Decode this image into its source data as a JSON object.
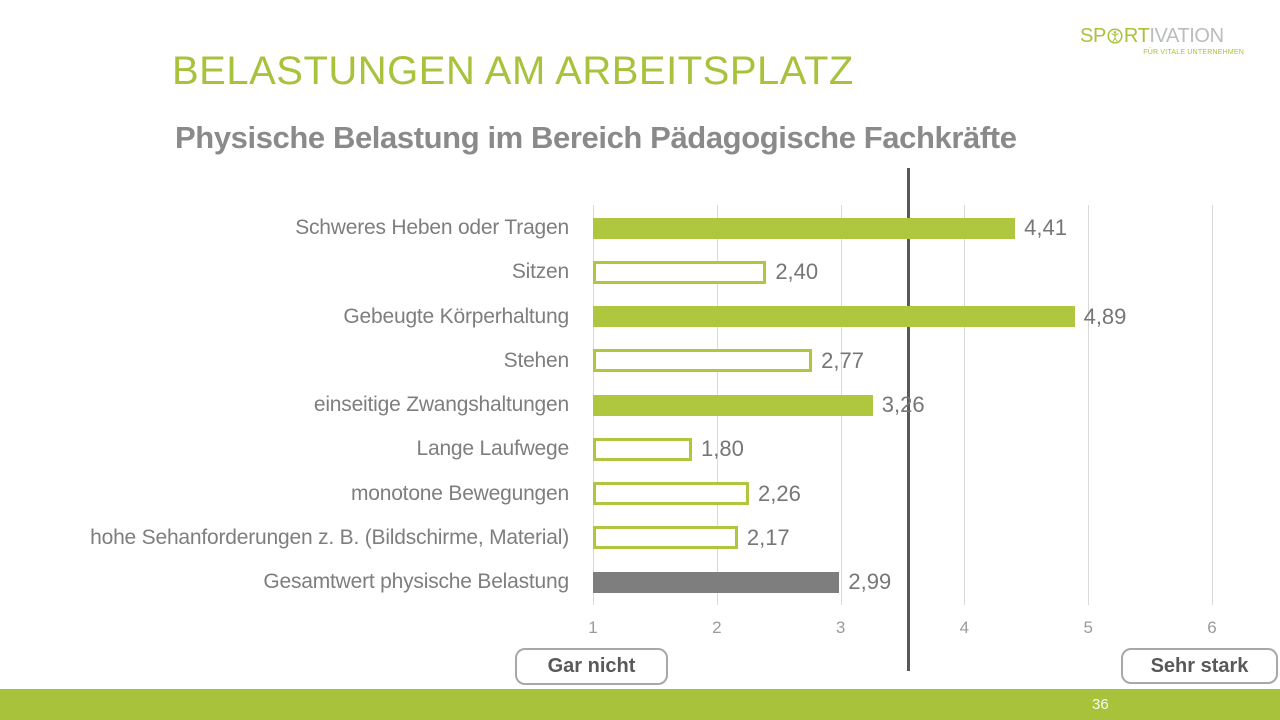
{
  "slide": {
    "title": "BELASTUNGEN AM ARBEITSPLATZ",
    "subtitle": "Physische Belastung im Bereich Pädagogische Fachkräfte",
    "page_number": "36"
  },
  "logo": {
    "part1": "SP",
    "part2": "RT",
    "part3": "IVATION",
    "tagline": "FÜR VITALE UNTERNEHMEN",
    "o_icon": "person-in-circle-icon"
  },
  "colors": {
    "accent_green": "#aec73e",
    "bar_gray": "#7e7e7e",
    "reference_line": "#595959",
    "text_gray": "#7e7e7e",
    "tick_gray": "#9b9b9b"
  },
  "chart_data": {
    "type": "bar",
    "orientation": "horizontal",
    "categories": [
      "Schweres Heben oder Tragen",
      "Sitzen",
      "Gebeugte Körperhaltung",
      "Stehen",
      "einseitige Zwangshaltungen",
      "Lange Laufwege",
      "monotone Bewegungen",
      "hohe Sehanforderungen z. B. (Bildschirme, Material)",
      "Gesamtwert physische Belastung"
    ],
    "values": [
      4.41,
      2.4,
      4.89,
      2.77,
      3.26,
      1.8,
      2.26,
      2.17,
      2.99
    ],
    "value_labels": [
      "4,41",
      "2,40",
      "4,89",
      "2,77",
      "3,26",
      "1,80",
      "2,26",
      "2,17",
      "2,99"
    ],
    "bar_styles": [
      "filled",
      "outlined",
      "filled",
      "outlined",
      "filled",
      "outlined",
      "outlined",
      "outlined",
      "gray"
    ],
    "x_ticks": [
      "1",
      "2",
      "3",
      "4",
      "5",
      "6"
    ],
    "xlim": [
      1,
      6
    ],
    "reference_line_value": 3.55,
    "scale_min_label": "Gar nicht",
    "scale_max_label": "Sehr stark",
    "grid": true,
    "legend": false
  }
}
